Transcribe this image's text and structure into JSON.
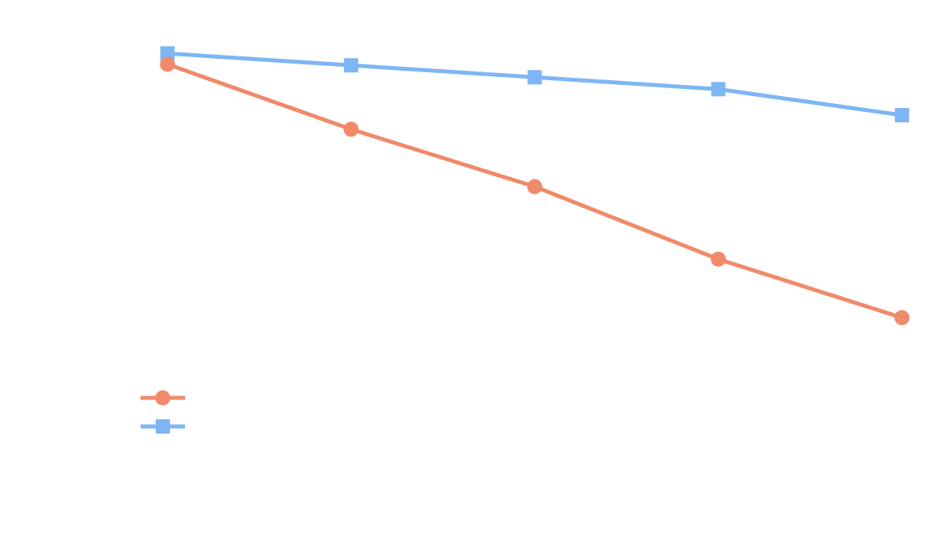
{
  "chart_data": {
    "type": "line",
    "title": "",
    "xlabel": "",
    "ylabel": "",
    "x": [
      1,
      2,
      3,
      4,
      5
    ],
    "xlim": [
      0.3,
      5.1
    ],
    "ylim": [
      0.58,
      1.02
    ],
    "grid": false,
    "legend_position": "lower-left",
    "series": [
      {
        "values": [
          0.99,
          0.93,
          0.877,
          0.81,
          0.756
        ],
        "color": "#F08A6A",
        "marker": "circle"
      },
      {
        "values": [
          1.0,
          0.989,
          0.978,
          0.967,
          0.943
        ],
        "color": "#7EB6F5",
        "marker": "square"
      }
    ]
  }
}
